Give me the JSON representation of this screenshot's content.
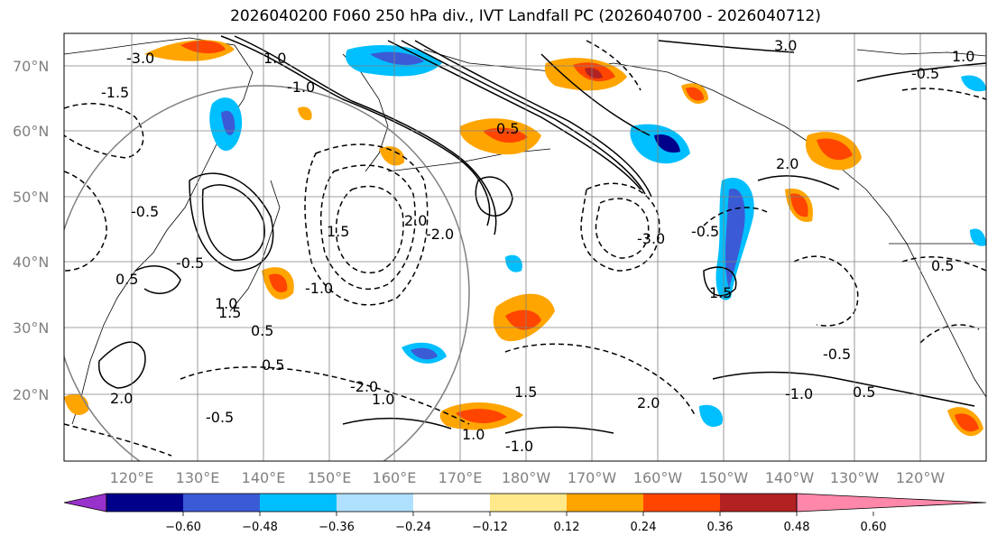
{
  "title": "2026040200 F060 250 hPa div., IVT Landfall PC (2026040700 - 2026040712)",
  "map": {
    "lat_labels": [
      "70°N",
      "60°N",
      "50°N",
      "40°N",
      "30°N",
      "20°N"
    ],
    "lon_labels": [
      "120°E",
      "130°E",
      "140°E",
      "150°E",
      "160°E",
      "170°E",
      "180°W",
      "170°W",
      "160°W",
      "150°W",
      "140°W",
      "130°W",
      "120°W"
    ],
    "contour_labels": [
      "-3.0",
      "3.0",
      "-1.5",
      "1.0",
      "-1.0",
      "0.5",
      "-0.5",
      "1.5",
      "2.0",
      "-2.0",
      "-0.5",
      "0.5",
      "1.0",
      "-1.0",
      "0.5",
      "1.5",
      "-0.5",
      "2.0",
      "-2.0",
      "0.5",
      "1.0",
      "-3.0",
      "1.5",
      "-0.5",
      "2.0",
      "-0.5",
      "0.5",
      "1.0",
      "-1.0",
      "1.5",
      "-1.0",
      "2.0",
      "-0.5",
      "0.5",
      "1.0"
    ]
  },
  "colorbar": {
    "tick_labels": [
      "−0.60",
      "−0.48",
      "−0.36",
      "−0.24",
      "−0.12",
      "0.12",
      "0.24",
      "0.36",
      "0.48",
      "0.60"
    ],
    "colors": [
      "#9932cc",
      "#00008b",
      "#3b5bd6",
      "#00bfff",
      "#b0e0ff",
      "#ffffff",
      "#ffe98a",
      "#ffa500",
      "#ff4500",
      "#b22222",
      "#ff88aa"
    ]
  }
}
